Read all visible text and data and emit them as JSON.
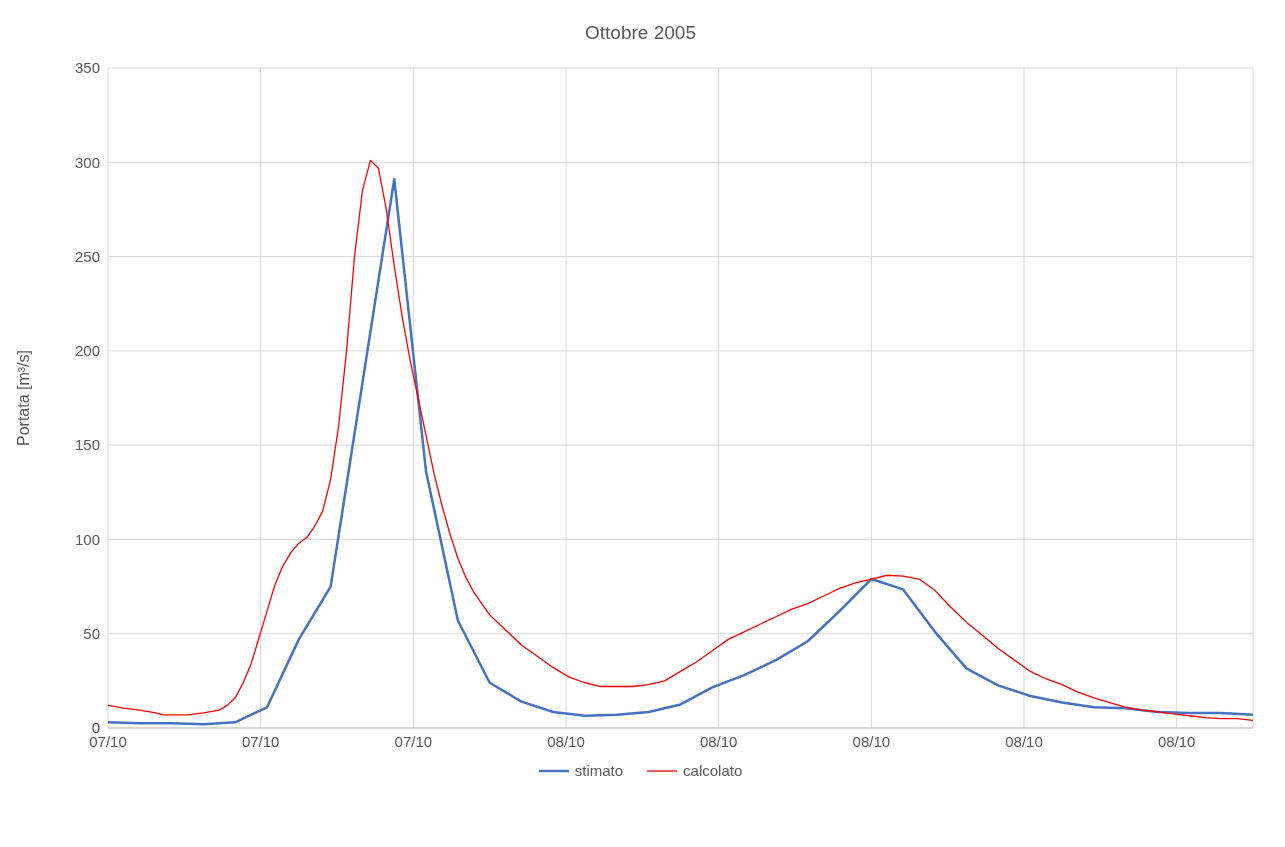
{
  "chart_data": {
    "type": "line",
    "title": "Ottobre 2005",
    "ylabel": "Portata [m³/s]",
    "xlim": [
      "2005-10-07T12:00",
      "2005-10-09T00:00"
    ],
    "xticks": [
      {
        "value": "2005-10-07T12:00",
        "label": "07/10"
      },
      {
        "value": "2005-10-07T16:48",
        "label": "07/10"
      },
      {
        "value": "2005-10-07T21:36",
        "label": "07/10"
      },
      {
        "value": "2005-10-08T02:24",
        "label": "08/10"
      },
      {
        "value": "2005-10-08T07:12",
        "label": "08/10"
      },
      {
        "value": "2005-10-08T12:00",
        "label": "08/10"
      },
      {
        "value": "2005-10-08T16:48",
        "label": "08/10"
      },
      {
        "value": "2005-10-08T21:36",
        "label": "08/10"
      }
    ],
    "ylim": [
      0,
      350
    ],
    "yticks": [
      0,
      50,
      100,
      150,
      200,
      250,
      300,
      350
    ],
    "grid": true,
    "legend": "bottom",
    "marker": "none",
    "line_style": "solid",
    "series": [
      {
        "name": "stimato",
        "color": "#4472c4",
        "x": [
          "2005-10-07T12:00",
          "2005-10-07T13:00",
          "2005-10-07T14:00",
          "2005-10-07T15:00",
          "2005-10-07T16:00",
          "2005-10-07T17:00",
          "2005-10-07T18:00",
          "2005-10-07T19:00",
          "2005-10-07T20:00",
          "2005-10-07T21:00",
          "2005-10-07T22:00",
          "2005-10-07T23:00",
          "2005-10-08T00:00",
          "2005-10-08T01:00",
          "2005-10-08T02:00",
          "2005-10-08T03:00",
          "2005-10-08T04:00",
          "2005-10-08T05:00",
          "2005-10-08T06:00",
          "2005-10-08T07:00",
          "2005-10-08T08:00",
          "2005-10-08T09:00",
          "2005-10-08T10:00",
          "2005-10-08T11:00",
          "2005-10-08T12:00",
          "2005-10-08T13:00",
          "2005-10-08T14:00",
          "2005-10-08T15:00",
          "2005-10-08T16:00",
          "2005-10-08T17:00",
          "2005-10-08T18:00",
          "2005-10-08T19:00",
          "2005-10-08T20:00",
          "2005-10-08T21:00",
          "2005-10-08T22:00",
          "2005-10-08T23:00",
          "2005-10-09T00:00"
        ],
        "values": [
          3,
          2.5,
          2.5,
          2,
          3,
          11,
          47,
          75,
          183,
          291,
          136,
          57,
          24,
          14,
          8.5,
          6.5,
          7,
          8.5,
          12.5,
          21.5,
          28,
          36,
          46,
          62,
          79,
          73.5,
          51,
          31.5,
          22.5,
          17,
          13.5,
          11,
          10.5,
          8.5,
          8,
          8,
          7
        ]
      },
      {
        "name": "calcolato",
        "color": "#ff0000",
        "x": [
          "2005-10-07T12:00",
          "2005-10-07T12:30",
          "2005-10-07T13:00",
          "2005-10-07T13:30",
          "2005-10-07T13:45",
          "2005-10-07T14:30",
          "2005-10-07T15:00",
          "2005-10-07T15:30",
          "2005-10-07T15:45",
          "2005-10-07T16:00",
          "2005-10-07T16:15",
          "2005-10-07T16:30",
          "2005-10-07T16:45",
          "2005-10-07T17:00",
          "2005-10-07T17:15",
          "2005-10-07T17:30",
          "2005-10-07T17:45",
          "2005-10-07T18:00",
          "2005-10-07T18:15",
          "2005-10-07T18:30",
          "2005-10-07T18:45",
          "2005-10-07T19:00",
          "2005-10-07T19:15",
          "2005-10-07T19:30",
          "2005-10-07T19:45",
          "2005-10-07T20:00",
          "2005-10-07T20:15",
          "2005-10-07T20:30",
          "2005-10-07T20:45",
          "2005-10-07T21:00",
          "2005-10-07T21:15",
          "2005-10-07T21:30",
          "2005-10-07T21:45",
          "2005-10-07T22:00",
          "2005-10-07T22:15",
          "2005-10-07T22:30",
          "2005-10-07T22:45",
          "2005-10-07T23:00",
          "2005-10-07T23:15",
          "2005-10-07T23:30",
          "2005-10-07T23:45",
          "2005-10-08T00:00",
          "2005-10-08T00:30",
          "2005-10-08T01:00",
          "2005-10-08T01:30",
          "2005-10-08T02:00",
          "2005-10-08T02:30",
          "2005-10-08T03:00",
          "2005-10-08T03:30",
          "2005-10-08T04:00",
          "2005-10-08T04:30",
          "2005-10-08T05:00",
          "2005-10-08T05:30",
          "2005-10-08T06:00",
          "2005-10-08T06:30",
          "2005-10-08T07:00",
          "2005-10-08T07:30",
          "2005-10-08T08:00",
          "2005-10-08T08:30",
          "2005-10-08T09:00",
          "2005-10-08T09:30",
          "2005-10-08T10:00",
          "2005-10-08T10:30",
          "2005-10-08T11:00",
          "2005-10-08T11:30",
          "2005-10-08T12:00",
          "2005-10-08T12:30",
          "2005-10-08T13:00",
          "2005-10-08T13:30",
          "2005-10-08T14:00",
          "2005-10-08T14:30",
          "2005-10-08T15:00",
          "2005-10-08T15:30",
          "2005-10-08T16:00",
          "2005-10-08T16:30",
          "2005-10-08T17:00",
          "2005-10-08T17:30",
          "2005-10-08T18:00",
          "2005-10-08T18:30",
          "2005-10-08T19:00",
          "2005-10-08T19:30",
          "2005-10-08T20:00",
          "2005-10-08T20:30",
          "2005-10-08T21:00",
          "2005-10-08T21:30",
          "2005-10-08T22:00",
          "2005-10-08T22:30",
          "2005-10-08T23:00",
          "2005-10-08T23:30",
          "2005-10-09T00:00"
        ],
        "values": [
          12,
          10.5,
          9.5,
          8,
          7,
          7,
          8,
          9.5,
          12,
          16,
          24,
          34,
          48,
          62,
          76,
          86,
          93,
          98,
          101,
          107,
          115,
          132,
          160,
          200,
          250,
          285,
          301,
          297,
          275,
          245,
          218,
          195,
          175,
          155,
          135,
          118,
          103,
          90,
          80,
          72,
          66,
          60,
          52,
          44,
          38,
          32,
          27,
          24,
          22,
          22,
          22,
          23,
          25,
          30,
          35,
          41,
          47,
          51,
          55,
          59,
          63,
          66,
          70,
          74,
          77,
          79,
          81,
          80.5,
          79,
          73,
          64,
          56,
          49,
          42,
          36,
          30,
          26,
          23,
          19,
          16,
          13.5,
          11,
          9.5,
          8.5,
          7.5,
          6.5,
          5.5,
          5,
          5,
          4
        ]
      }
    ]
  }
}
